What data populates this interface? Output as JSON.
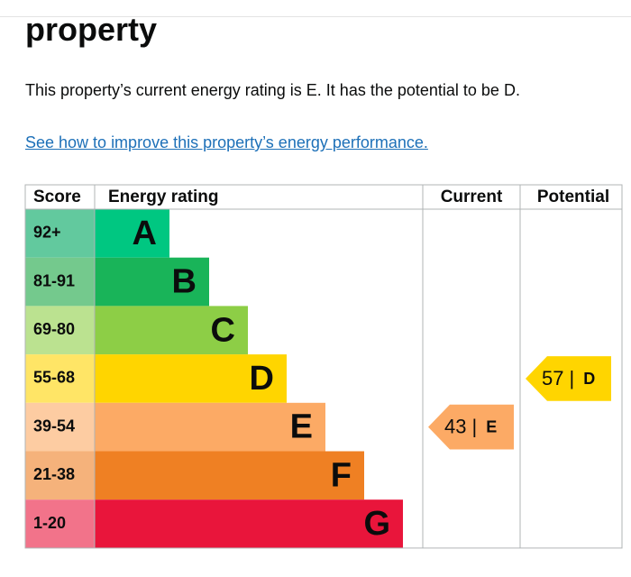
{
  "heading": "property",
  "intro": "This property’s current energy rating is E. It has the potential to be D.",
  "link": "See how to improve this property’s energy performance.",
  "table": {
    "headers": [
      "Score",
      "Energy rating",
      "Current",
      "Potential"
    ],
    "rows": [
      {
        "score": "92+",
        "band": "A",
        "color": "#00c781",
        "score_color": "#62c99e"
      },
      {
        "score": "81-91",
        "band": "B",
        "color": "#19b459",
        "score_color": "#74c98d"
      },
      {
        "score": "69-80",
        "band": "C",
        "color": "#8dce46",
        "score_color": "#bbe290"
      },
      {
        "score": "55-68",
        "band": "D",
        "color": "#ffd500",
        "score_color": "#ffe566"
      },
      {
        "score": "39-54",
        "band": "E",
        "color": "#fcaa65",
        "score_color": "#fdcca2"
      },
      {
        "score": "21-38",
        "band": "F",
        "color": "#ef8023",
        "score_color": "#f5b27b"
      },
      {
        "score": "1-20",
        "band": "G",
        "color": "#e9153b",
        "score_color": "#f2738a"
      }
    ],
    "separator": "|",
    "current": {
      "value": 43,
      "band": "E"
    },
    "potential": {
      "value": 57,
      "band": "D"
    }
  }
}
